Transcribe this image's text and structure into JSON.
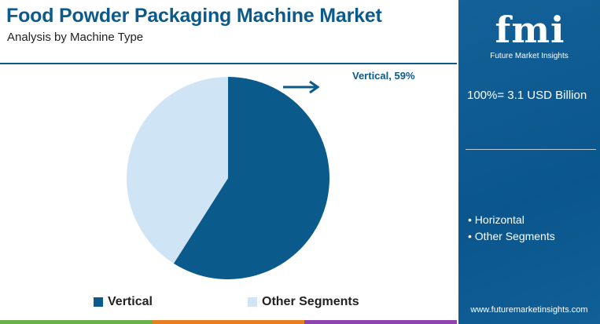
{
  "header": {
    "title": "Food Powder Packaging Machine Market",
    "subtitle": "Analysis by Machine Type"
  },
  "chart_data": {
    "type": "pie",
    "slices": [
      {
        "label": "Vertical",
        "value": 59,
        "color": "#0b5a8c"
      },
      {
        "label": "Other Segments",
        "value": 41,
        "color": "#cfe4f4"
      }
    ],
    "callout": {
      "text": "Vertical, 59%"
    },
    "legend": {
      "placement": "bottom",
      "items": [
        "Vertical",
        "Other Segments"
      ]
    }
  },
  "side_panel": {
    "logo_text": "fmi",
    "logo_tagline": "Future Market Insights",
    "total_label": "100%= 3.1 USD Billion",
    "segments": [
      "• Horizontal",
      "• Other Segments"
    ],
    "website": "www.futuremarketinsights.com"
  },
  "colors": {
    "brand": "#0b5a8c",
    "panel": "#0a5a94",
    "other_slice": "#cfe4f4",
    "bottom_strip": [
      "#6ab04c",
      "#e67e22",
      "#8e44ad"
    ]
  }
}
